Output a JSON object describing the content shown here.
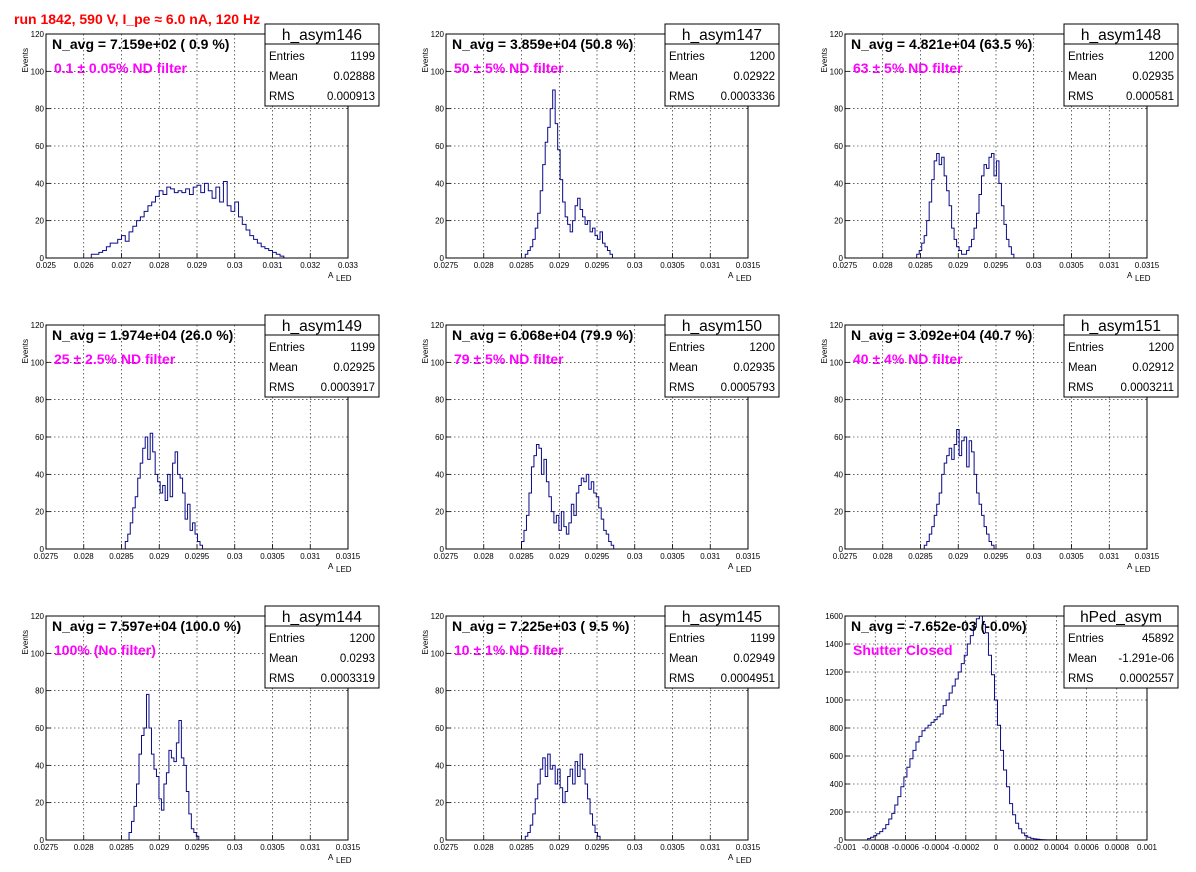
{
  "header": {
    "run_title": "run 1842,   590 V, I_pe ≈ 6.0 nA, 120 Hz"
  },
  "colors": {
    "title": "#ff0000",
    "filter_label": "#ff00ff",
    "histogram": "#0b0b8a"
  },
  "chart_data": [
    {
      "type": "bar",
      "name": "h_asym146",
      "n_avg_label": "N_avg = 7.159e+02 ( 0.9 %)",
      "filter_label": "0.1 ± 0.05% ND filter",
      "stats": [
        [
          "Entries",
          "1199"
        ],
        [
          "Mean",
          "0.02888"
        ],
        [
          "RMS",
          "0.000913"
        ]
      ],
      "xlabel": "A",
      "xlabel_sub": "LED",
      "ylabel": "Events",
      "xlim": [
        0.025,
        0.033
      ],
      "ylim": [
        0,
        120
      ],
      "xticks": [
        "0.025",
        "0.026",
        "0.027",
        "0.028",
        "0.029",
        "0.03",
        "0.031",
        "0.032",
        "0.033"
      ],
      "yticks": [
        "0",
        "20",
        "40",
        "60",
        "80",
        "100",
        "120"
      ],
      "bin_start": 0.0262,
      "bin_width": 0.0001,
      "values": [
        2,
        2,
        3,
        4,
        6,
        8,
        8,
        10,
        12,
        9,
        14,
        17,
        20,
        22,
        25,
        28,
        30,
        33,
        36,
        34,
        38,
        37,
        35,
        36,
        35,
        37,
        34,
        38,
        39,
        35,
        40,
        36,
        32,
        38,
        30,
        41,
        28,
        25,
        30,
        22,
        18,
        15,
        12,
        10,
        8,
        6,
        5,
        4,
        3,
        2,
        1
      ]
    },
    {
      "type": "bar",
      "name": "h_asym147",
      "n_avg_label": "N_avg = 3.859e+04 (50.8 %)",
      "filter_label": "50 ± 5% ND filter",
      "stats": [
        [
          "Entries",
          "1200"
        ],
        [
          "Mean",
          "0.02922"
        ],
        [
          "RMS",
          "0.0003336"
        ]
      ],
      "xlabel": "A",
      "xlabel_sub": "LED",
      "ylabel": "Events",
      "xlim": [
        0.0275,
        0.0315
      ],
      "ylim": [
        0,
        120
      ],
      "xticks": [
        "0.0275",
        "0.028",
        "0.0285",
        "0.029",
        "0.0295",
        "0.03",
        "0.0305",
        "0.031",
        "0.0315"
      ],
      "yticks": [
        "0",
        "20",
        "40",
        "60",
        "80",
        "100",
        "120"
      ],
      "bin_start": 0.02855,
      "bin_width": 3.3e-05,
      "values": [
        2,
        4,
        6,
        10,
        16,
        24,
        36,
        50,
        62,
        70,
        80,
        90,
        72,
        58,
        42,
        30,
        22,
        18,
        14,
        20,
        28,
        32,
        26,
        22,
        18,
        20,
        14,
        16,
        12,
        10,
        14,
        8,
        6,
        4,
        2
      ]
    },
    {
      "type": "bar",
      "name": "h_asym148",
      "n_avg_label": "N_avg = 4.821e+04 (63.5 %)",
      "filter_label": "63 ± 5% ND filter",
      "stats": [
        [
          "Entries",
          "1200"
        ],
        [
          "Mean",
          "0.02935"
        ],
        [
          "RMS",
          "0.000581"
        ]
      ],
      "xlabel": "A",
      "xlabel_sub": "LED",
      "ylabel": "Events",
      "xlim": [
        0.0275,
        0.0315
      ],
      "ylim": [
        0,
        120
      ],
      "xticks": [
        "0.0275",
        "0.028",
        "0.0285",
        "0.029",
        "0.0295",
        "0.03",
        "0.0305",
        "0.031",
        "0.0315"
      ],
      "yticks": [
        "0",
        "20",
        "40",
        "60",
        "80",
        "100",
        "120"
      ],
      "bin_start": 0.02845,
      "bin_width": 3.3e-05,
      "values": [
        2,
        4,
        8,
        12,
        20,
        30,
        42,
        52,
        56,
        50,
        54,
        44,
        36,
        28,
        16,
        10,
        6,
        4,
        2,
        2,
        4,
        6,
        10,
        16,
        24,
        34,
        44,
        50,
        48,
        54,
        56,
        44,
        52,
        40,
        28,
        18,
        10,
        6,
        2
      ]
    },
    {
      "type": "bar",
      "name": "h_asym149",
      "n_avg_label": "N_avg = 1.974e+04 (26.0 %)",
      "filter_label": "25 ± 2.5% ND filter",
      "stats": [
        [
          "Entries",
          "1199"
        ],
        [
          "Mean",
          "0.02925"
        ],
        [
          "RMS",
          "0.0003917"
        ]
      ],
      "xlabel": "A",
      "xlabel_sub": "LED",
      "ylabel": "Events",
      "xlim": [
        0.0275,
        0.0315
      ],
      "ylim": [
        0,
        120
      ],
      "xticks": [
        "0.0275",
        "0.028",
        "0.0285",
        "0.029",
        "0.0295",
        "0.03",
        "0.0305",
        "0.031",
        "0.0315"
      ],
      "yticks": [
        "0",
        "20",
        "40",
        "60",
        "80",
        "100",
        "120"
      ],
      "bin_start": 0.02855,
      "bin_width": 3.3e-05,
      "values": [
        4,
        8,
        14,
        22,
        28,
        38,
        46,
        54,
        60,
        48,
        62,
        52,
        40,
        36,
        30,
        34,
        26,
        40,
        28,
        46,
        52,
        40,
        38,
        30,
        16,
        24,
        10,
        14,
        8,
        4,
        2
      ]
    },
    {
      "type": "bar",
      "name": "h_asym150",
      "n_avg_label": "N_avg = 6.068e+04 (79.9 %)",
      "filter_label": "79 ± 5% ND filter",
      "stats": [
        [
          "Entries",
          "1200"
        ],
        [
          "Mean",
          "0.02935"
        ],
        [
          "RMS",
          "0.0005793"
        ]
      ],
      "xlabel": "A",
      "xlabel_sub": "LED",
      "ylabel": "Events",
      "xlim": [
        0.0275,
        0.0315
      ],
      "ylim": [
        0,
        120
      ],
      "xticks": [
        "0.0275",
        "0.028",
        "0.0285",
        "0.029",
        "0.0295",
        "0.03",
        "0.0305",
        "0.031",
        "0.0315"
      ],
      "yticks": [
        "0",
        "20",
        "40",
        "60",
        "80",
        "100",
        "120"
      ],
      "bin_start": 0.0285,
      "bin_width": 3.3e-05,
      "values": [
        4,
        10,
        18,
        30,
        44,
        50,
        56,
        54,
        40,
        48,
        36,
        28,
        20,
        14,
        18,
        10,
        20,
        12,
        8,
        14,
        24,
        18,
        30,
        34,
        38,
        36,
        40,
        32,
        36,
        30,
        28,
        22,
        16,
        10,
        8,
        4,
        2
      ]
    },
    {
      "type": "bar",
      "name": "h_asym151",
      "n_avg_label": "N_avg = 3.092e+04 (40.7 %)",
      "filter_label": "40 ± 4% ND filter",
      "stats": [
        [
          "Entries",
          "1200"
        ],
        [
          "Mean",
          "0.02912"
        ],
        [
          "RMS",
          "0.0003211"
        ]
      ],
      "xlabel": "A",
      "xlabel_sub": "LED",
      "ylabel": "Events",
      "xlim": [
        0.0275,
        0.0315
      ],
      "ylim": [
        0,
        120
      ],
      "xticks": [
        "0.0275",
        "0.028",
        "0.0285",
        "0.029",
        "0.0295",
        "0.03",
        "0.0305",
        "0.031",
        "0.0315"
      ],
      "yticks": [
        "0",
        "20",
        "40",
        "60",
        "80",
        "100",
        "120"
      ],
      "bin_start": 0.02855,
      "bin_width": 3.3e-05,
      "values": [
        2,
        4,
        8,
        12,
        18,
        24,
        30,
        40,
        46,
        50,
        54,
        48,
        56,
        64,
        50,
        58,
        60,
        44,
        58,
        52,
        40,
        30,
        24,
        18,
        12,
        8,
        4,
        2
      ]
    },
    {
      "type": "bar",
      "name": "h_asym144",
      "n_avg_label": "N_avg = 7.597e+04 (100.0 %)",
      "filter_label": "100% (No filter)",
      "stats": [
        [
          "Entries",
          "1200"
        ],
        [
          "Mean",
          "0.0293"
        ],
        [
          "RMS",
          "0.0003319"
        ]
      ],
      "xlabel": "A",
      "xlabel_sub": "LED",
      "ylabel": "Events",
      "xlim": [
        0.0275,
        0.0315
      ],
      "ylim": [
        0,
        120
      ],
      "xticks": [
        "0.0275",
        "0.028",
        "0.0285",
        "0.029",
        "0.0295",
        "0.03",
        "0.0305",
        "0.031",
        "0.0315"
      ],
      "yticks": [
        "0",
        "20",
        "40",
        "60",
        "80",
        "100",
        "120"
      ],
      "bin_start": 0.0286,
      "bin_width": 3.3e-05,
      "values": [
        4,
        10,
        18,
        30,
        46,
        56,
        60,
        78,
        60,
        46,
        38,
        34,
        22,
        16,
        30,
        36,
        48,
        44,
        42,
        52,
        64,
        44,
        40,
        26,
        14,
        6,
        4,
        2
      ]
    },
    {
      "type": "bar",
      "name": "h_asym145",
      "n_avg_label": "N_avg = 7.225e+03 ( 9.5 %)",
      "filter_label": "10 ± 1% ND filter",
      "stats": [
        [
          "Entries",
          "1199"
        ],
        [
          "Mean",
          "0.02949"
        ],
        [
          "RMS",
          "0.0004951"
        ]
      ],
      "xlabel": "A",
      "xlabel_sub": "LED",
      "ylabel": "Events",
      "xlim": [
        0.0275,
        0.0315
      ],
      "ylim": [
        0,
        120
      ],
      "xticks": [
        "0.0275",
        "0.028",
        "0.0285",
        "0.029",
        "0.0295",
        "0.03",
        "0.0305",
        "0.031",
        "0.0315"
      ],
      "yticks": [
        "0",
        "20",
        "40",
        "60",
        "80",
        "100",
        "120"
      ],
      "bin_start": 0.02855,
      "bin_width": 3.3e-05,
      "values": [
        2,
        4,
        8,
        14,
        22,
        30,
        38,
        44,
        34,
        46,
        38,
        40,
        30,
        38,
        28,
        20,
        26,
        34,
        38,
        30,
        42,
        34,
        46,
        38,
        30,
        22,
        14,
        8,
        4,
        2
      ]
    },
    {
      "type": "bar",
      "name": "hPed_asym",
      "n_avg_label": "N_avg = -7.652e-03 (-0.0%)",
      "filter_label": "Shutter Closed",
      "stats": [
        [
          "Entries",
          "45892"
        ],
        [
          "Mean",
          "-1.291e-06"
        ],
        [
          "RMS",
          "0.0002557"
        ]
      ],
      "xlabel": "",
      "xlabel_sub": "",
      "ylabel": "",
      "xlim": [
        -0.001,
        0.001
      ],
      "ylim": [
        0,
        1600
      ],
      "xticks": [
        "-0.001",
        "-0.0008",
        "-0.0006",
        "-0.0004",
        "-0.0002",
        "0",
        "0.0002",
        "0.0004",
        "0.0006",
        "0.0008",
        "0.001"
      ],
      "yticks": [
        "0",
        "200",
        "400",
        "600",
        "800",
        "1000",
        "1200",
        "1400",
        "1600"
      ],
      "bin_start": -0.00085,
      "bin_width": 2e-05,
      "values": [
        10,
        20,
        30,
        45,
        60,
        80,
        110,
        150,
        190,
        250,
        310,
        380,
        450,
        520,
        580,
        640,
        700,
        740,
        780,
        800,
        820,
        840,
        860,
        880,
        900,
        960,
        1000,
        1050,
        1100,
        1150,
        1200,
        1260,
        1320,
        1400,
        1460,
        1520,
        1580,
        1600,
        1540,
        1480,
        1320,
        1180,
        1000,
        820,
        640,
        500,
        380,
        260,
        180,
        120,
        80,
        50,
        30,
        20,
        12,
        8,
        5,
        3,
        2,
        1,
        1,
        1,
        1
      ]
    }
  ]
}
